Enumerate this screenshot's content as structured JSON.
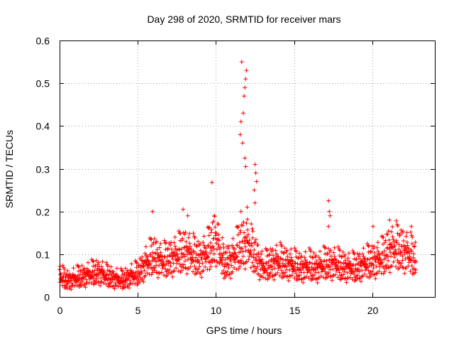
{
  "chart_data": {
    "type": "scatter",
    "title": "Day 298 of 2020, SRMTID for receiver mars",
    "xlabel": "GPS time / hours",
    "ylabel": "SRMTID / TECUs",
    "xlim": [
      0,
      24
    ],
    "ylim": [
      0,
      0.6
    ],
    "xticks": [
      0,
      5,
      10,
      15,
      20
    ],
    "yticks": [
      0,
      0.1,
      0.2,
      0.3,
      0.4,
      0.5,
      0.6
    ],
    "xtick_labels": [
      "0",
      "5",
      "10",
      "15",
      "20"
    ],
    "ytick_labels": [
      "0",
      "0.1",
      "0.2",
      "0.3",
      "0.4",
      "0.5",
      "0.6"
    ],
    "grid": true,
    "marker": "+",
    "color": "#ff0000",
    "series": [
      {
        "name": "SRMTID",
        "trend": [
          [
            0.0,
            0.05
          ],
          [
            0.5,
            0.04
          ],
          [
            1.0,
            0.045
          ],
          [
            1.5,
            0.05
          ],
          [
            2.0,
            0.055
          ],
          [
            2.5,
            0.06
          ],
          [
            3.0,
            0.05
          ],
          [
            3.5,
            0.045
          ],
          [
            4.0,
            0.04
          ],
          [
            4.5,
            0.05
          ],
          [
            5.0,
            0.055
          ],
          [
            5.5,
            0.08
          ],
          [
            6.0,
            0.1
          ],
          [
            6.5,
            0.085
          ],
          [
            7.0,
            0.09
          ],
          [
            7.5,
            0.1
          ],
          [
            8.0,
            0.11
          ],
          [
            8.5,
            0.1
          ],
          [
            9.0,
            0.09
          ],
          [
            9.5,
            0.11
          ],
          [
            10.0,
            0.14
          ],
          [
            10.5,
            0.08
          ],
          [
            11.0,
            0.09
          ],
          [
            11.5,
            0.12
          ],
          [
            12.0,
            0.13
          ],
          [
            12.5,
            0.1
          ],
          [
            13.0,
            0.07
          ],
          [
            13.5,
            0.08
          ],
          [
            14.0,
            0.085
          ],
          [
            14.5,
            0.08
          ],
          [
            15.0,
            0.075
          ],
          [
            15.5,
            0.07
          ],
          [
            16.0,
            0.075
          ],
          [
            16.5,
            0.07
          ],
          [
            17.0,
            0.08
          ],
          [
            17.5,
            0.08
          ],
          [
            18.0,
            0.075
          ],
          [
            18.5,
            0.07
          ],
          [
            19.0,
            0.07
          ],
          [
            19.5,
            0.08
          ],
          [
            20.0,
            0.085
          ],
          [
            20.5,
            0.09
          ],
          [
            21.0,
            0.11
          ],
          [
            21.5,
            0.12
          ],
          [
            22.0,
            0.11
          ],
          [
            22.5,
            0.1
          ],
          [
            22.8,
            0.09
          ]
        ],
        "spikes": [
          [
            11.65,
            0.55
          ],
          [
            11.95,
            0.53
          ],
          [
            11.9,
            0.51
          ],
          [
            11.85,
            0.49
          ],
          [
            11.8,
            0.47
          ],
          [
            11.75,
            0.43
          ],
          [
            11.6,
            0.41
          ],
          [
            11.55,
            0.38
          ],
          [
            11.7,
            0.36
          ],
          [
            11.85,
            0.325
          ],
          [
            11.9,
            0.305
          ],
          [
            12.5,
            0.31
          ],
          [
            12.55,
            0.29
          ],
          [
            12.6,
            0.27
          ],
          [
            12.45,
            0.25
          ],
          [
            12.5,
            0.22
          ],
          [
            12.0,
            0.21
          ],
          [
            11.6,
            0.2
          ],
          [
            9.75,
            0.268
          ],
          [
            9.9,
            0.19
          ],
          [
            17.2,
            0.225
          ],
          [
            17.25,
            0.2
          ],
          [
            17.3,
            0.19
          ],
          [
            17.2,
            0.165
          ],
          [
            5.95,
            0.2
          ],
          [
            7.9,
            0.205
          ],
          [
            8.2,
            0.19
          ],
          [
            21.1,
            0.18
          ],
          [
            20.05,
            0.165
          ],
          [
            22.5,
            0.165
          ]
        ],
        "x_end": 22.8
      }
    ]
  }
}
